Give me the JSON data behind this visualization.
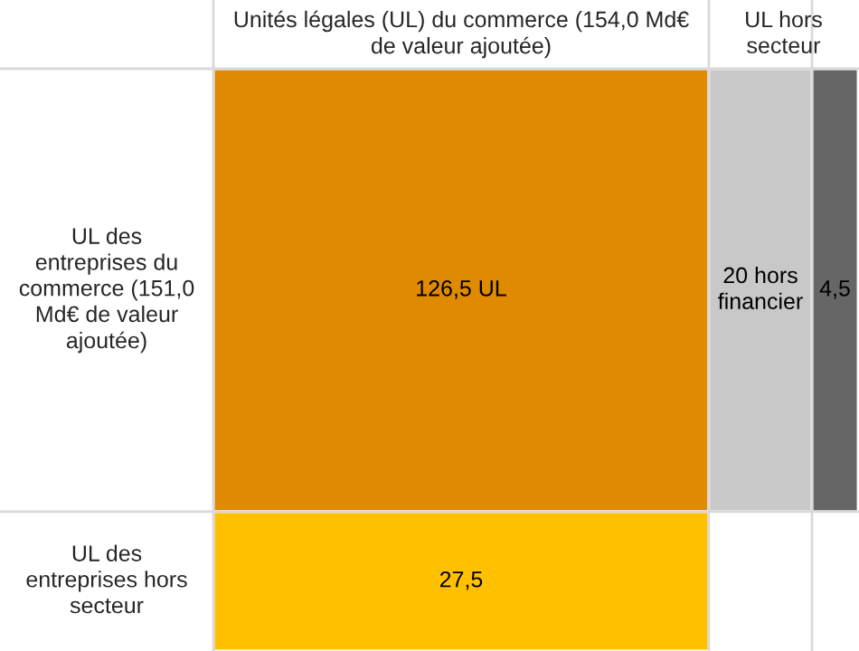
{
  "chart_data": {
    "type": "other",
    "title": "Unités légales (UL) du commerce (154,0 Md€ de valeur ajoutée)",
    "annotations": [
      "UL hors secteur",
      "UL des entreprises du commerce (151,0 Md€ de valeur ajoutée)",
      "UL des entreprises hors secteur"
    ],
    "values": [
      126.5,
      20,
      4.5,
      27.5
    ],
    "value_labels": [
      "126,5 UL",
      "20 hors financier",
      "4,5",
      "27,5"
    ],
    "colors": [
      "#df8a00",
      "#c8c8c8",
      "#666666",
      "#ffc000"
    ]
  }
}
